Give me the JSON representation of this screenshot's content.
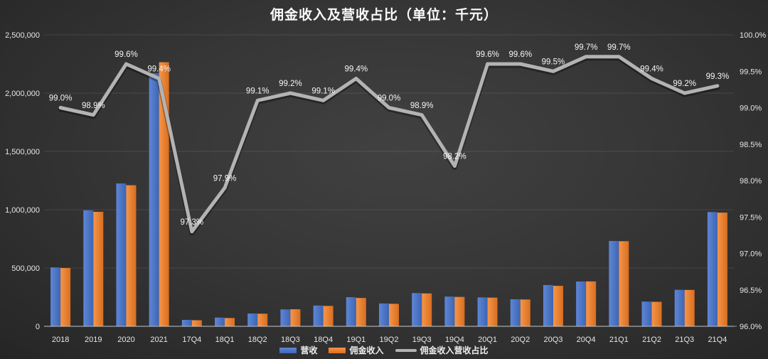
{
  "title": "佣金收入及营收占比（单位：千元）",
  "legend": {
    "revenue": "营收",
    "commission": "佣金收入",
    "ratio": "佣金收入营收占比"
  },
  "colors": {
    "revenue_bar": "#4a74c9",
    "commission_bar": "#ed7d31",
    "ratio_line": "#b3b3b3",
    "grid_line": "#4a4a4a",
    "axis_text": "#e6e6e6",
    "label_text": "#f5f5f5",
    "background": "#383838"
  },
  "chart_data": {
    "type": "combo",
    "grid": true,
    "legend_position": "bottom",
    "categories": [
      "2018",
      "2019",
      "2020",
      "2021",
      "17Q4",
      "18Q1",
      "18Q2",
      "18Q3",
      "18Q4",
      "19Q1",
      "19Q2",
      "19Q3",
      "19Q4",
      "20Q1",
      "20Q2",
      "20Q3",
      "20Q4",
      "21Q1",
      "21Q2",
      "21Q3",
      "21Q4"
    ],
    "series": [
      {
        "name": "营收",
        "type": "bar",
        "axis": "left",
        "values": [
          505000,
          995000,
          1225000,
          2170000,
          55000,
          75000,
          110000,
          145000,
          178000,
          250000,
          196000,
          285000,
          255000,
          248000,
          232000,
          354000,
          384000,
          732000,
          212000,
          313000,
          980000
        ]
      },
      {
        "name": "佣金收入",
        "type": "bar",
        "axis": "left",
        "values": [
          500000,
          982000,
          1210000,
          2265000,
          52000,
          71000,
          108000,
          146000,
          175000,
          243000,
          193000,
          282000,
          252000,
          246000,
          230000,
          347000,
          385000,
          730000,
          210000,
          312000,
          975000
        ]
      },
      {
        "name": "佣金收入营收占比",
        "type": "line",
        "axis": "right",
        "values": [
          99.0,
          98.9,
          99.6,
          99.4,
          97.3,
          97.9,
          99.1,
          99.2,
          99.1,
          99.4,
          99.0,
          98.9,
          98.2,
          99.6,
          99.6,
          99.5,
          99.7,
          99.7,
          99.4,
          99.2,
          99.3
        ],
        "labels": [
          "99.0%",
          "98.9%",
          "99.6%",
          "99.4%",
          "97.3%",
          "97.9%",
          "99.1%",
          "99.2%",
          "99.1%",
          "99.4%",
          "99.0%",
          "98.9%",
          "98.2%",
          "99.6%",
          "99.6%",
          "99.5%",
          "99.7%",
          "99.7%",
          "99.4%",
          "99.2%",
          "99.3%"
        ]
      }
    ],
    "left_axis": {
      "min": 0,
      "max": 2500000,
      "ticks": [
        "0",
        "500,000",
        "1,000,000",
        "1,500,000",
        "2,000,000",
        "2,500,000"
      ]
    },
    "right_axis": {
      "min": 96.0,
      "max": 100.0,
      "ticks": [
        "96.0%",
        "96.5%",
        "97.0%",
        "97.5%",
        "98.0%",
        "98.5%",
        "99.0%",
        "99.5%",
        "100.0%"
      ]
    }
  }
}
